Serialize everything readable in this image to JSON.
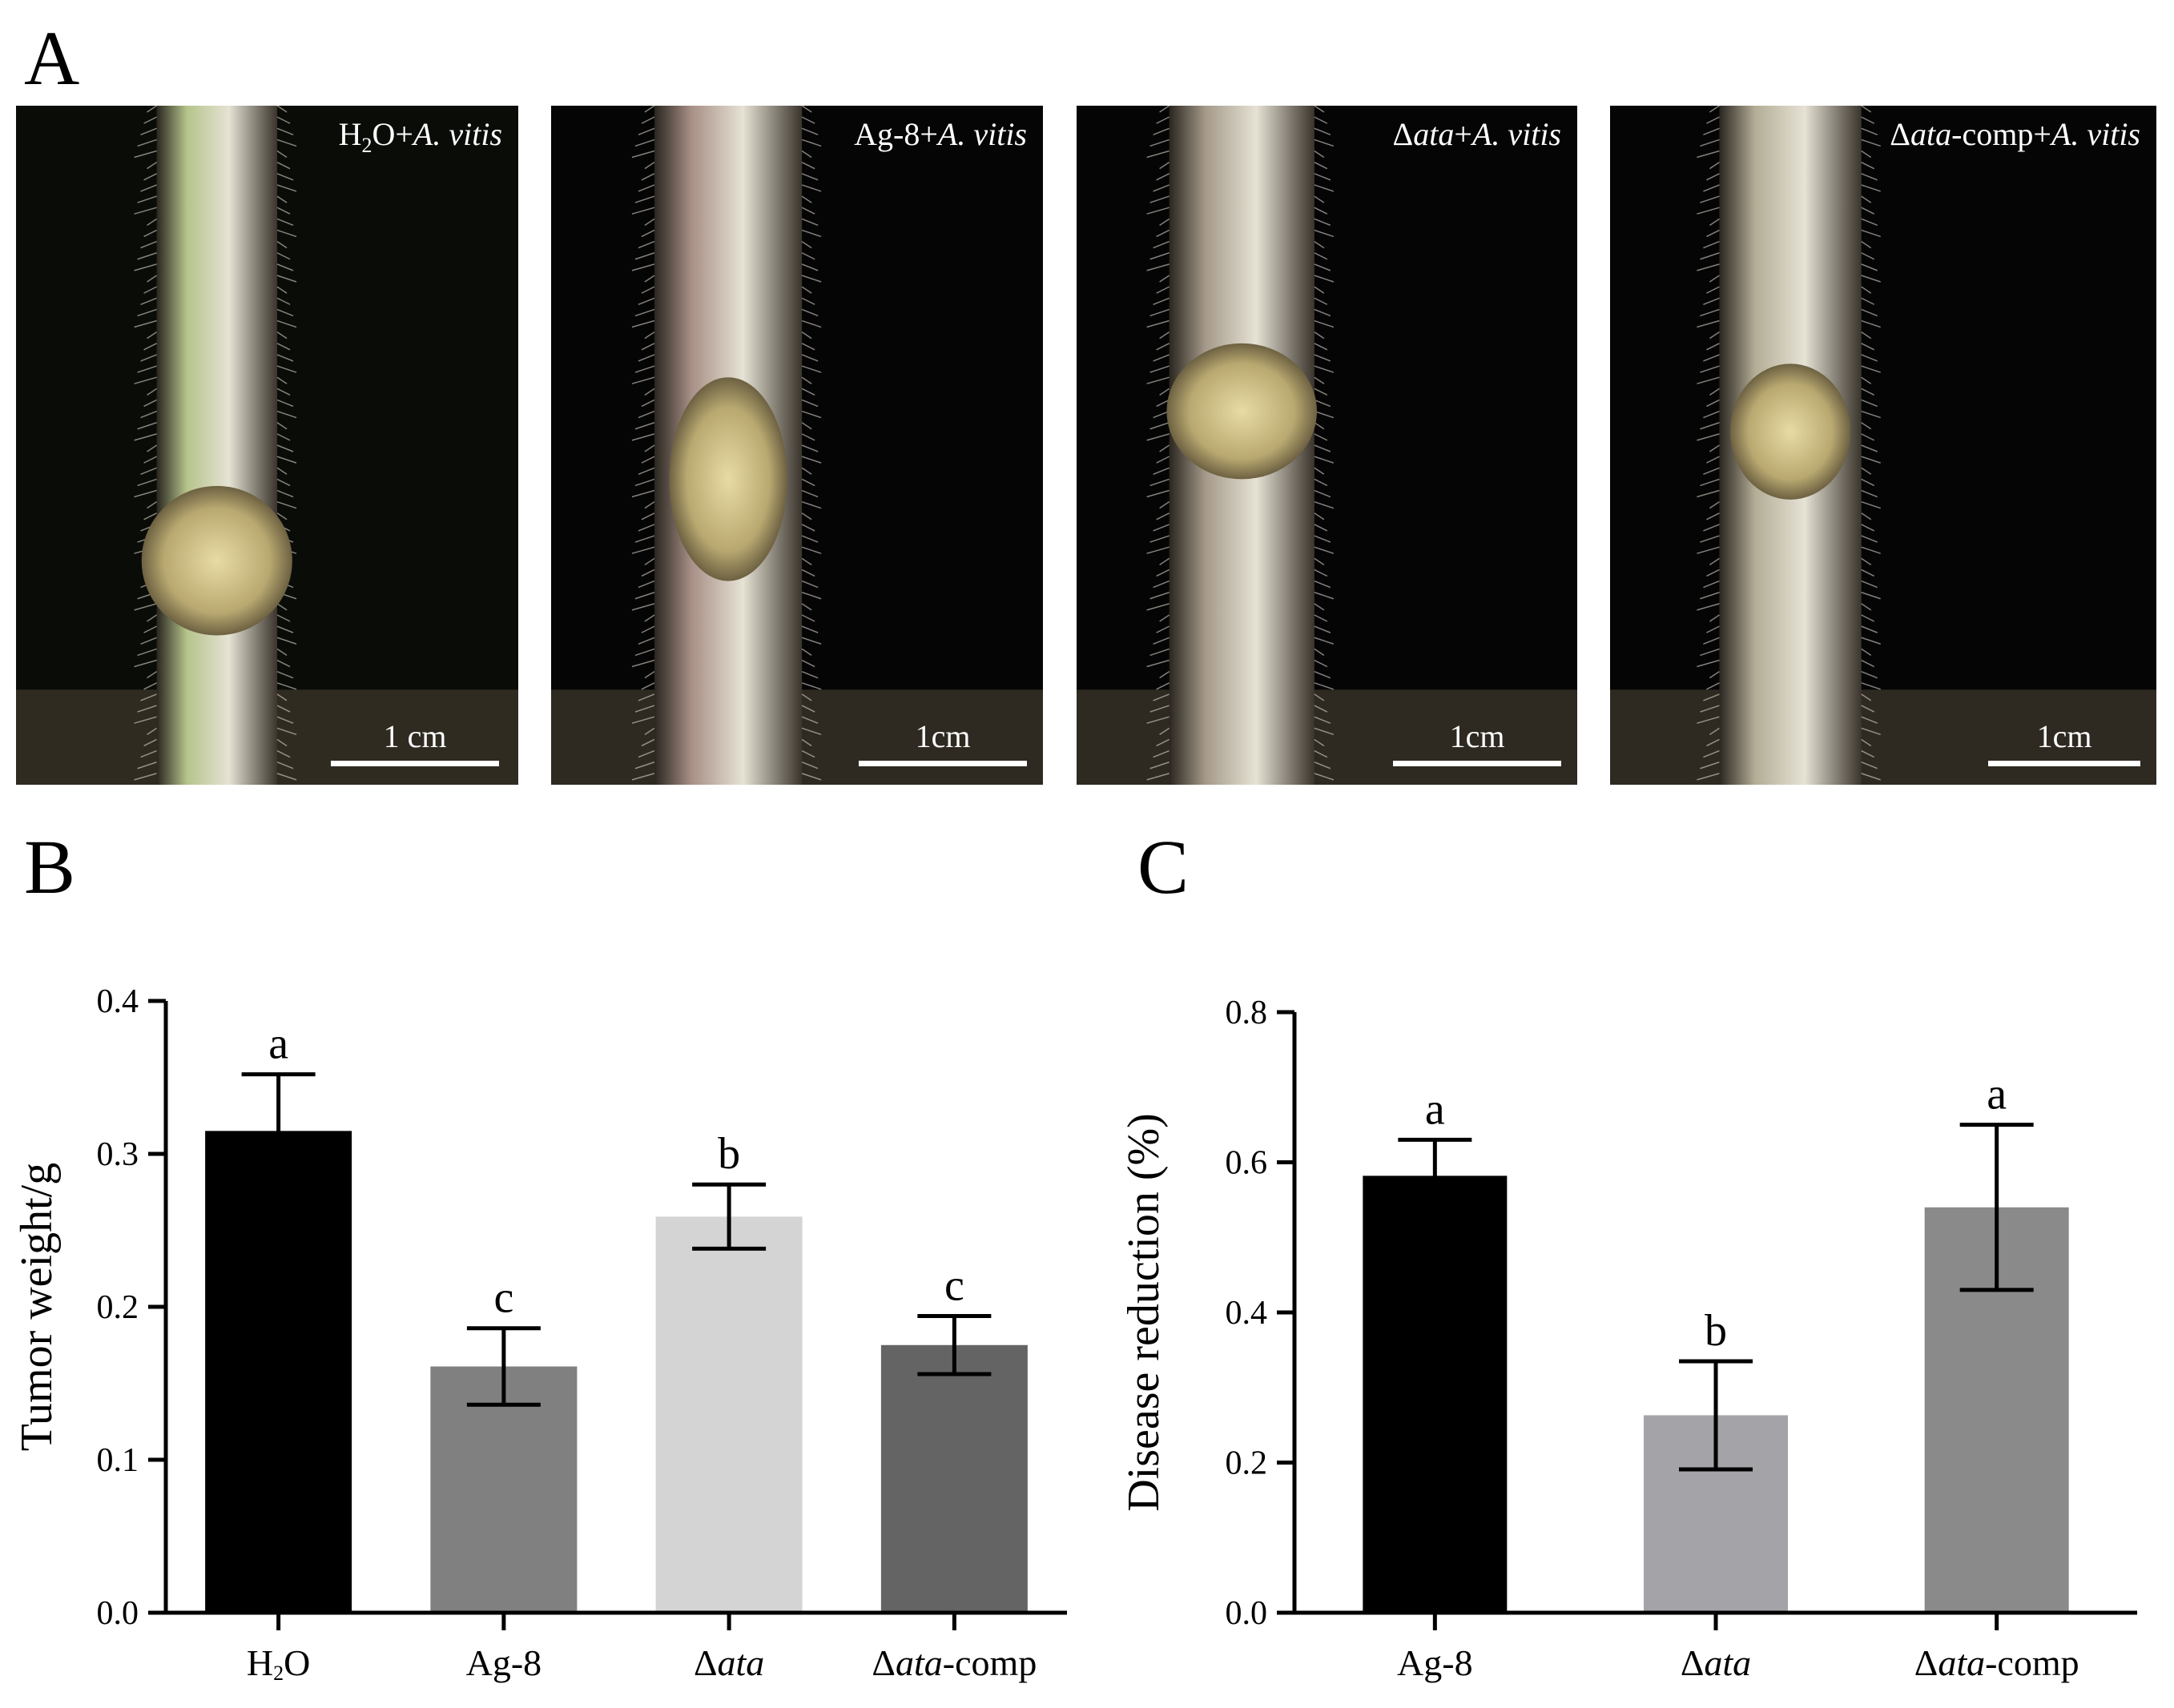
{
  "panels": {
    "A": {
      "letter": "A"
    },
    "B": {
      "letter": "B"
    },
    "C": {
      "letter": "C"
    }
  },
  "photos": [
    {
      "label_html": "H<sub style=\"font-size:26px\">2</sub>O+<i>A. vitis</i>",
      "scale": "1 cm",
      "stem_color": "#b5c48a",
      "background": "#0a0c08"
    },
    {
      "label_html": "Ag-8+<i>A. vitis</i>",
      "scale": "1cm",
      "stem_color": "#a88f86",
      "background": "#050505"
    },
    {
      "label_html": "Δ<i>ata</i>+<i>A. vitis</i>",
      "scale": "1cm",
      "stem_color": "#a59a8a",
      "background": "#050505"
    },
    {
      "label_html": "Δ<i>ata</i>-comp+<i>A. vitis</i>",
      "scale": "1cm",
      "stem_color": "#b3ad96",
      "background": "#050505"
    }
  ],
  "chart_data": [
    {
      "type": "bar",
      "panel": "B",
      "ylabel": "Tumor weight/g",
      "xlabel": "",
      "ylim": [
        0,
        0.4
      ],
      "yticks": [
        "0.0",
        "0.1",
        "0.2",
        "0.3",
        "0.4"
      ],
      "categories": [
        "H₂O",
        "Ag-8",
        "Δata",
        "Δata-comp"
      ],
      "category_html": [
        "H<tspan font-size=\"26\" dy=\"6\">2</tspan><tspan dy=\"-6\">O</tspan>",
        "Ag-8",
        "Δ<tspan font-style=\"italic\">ata</tspan>",
        "Δ<tspan font-style=\"italic\">ata</tspan>-comp"
      ],
      "values": [
        0.315,
        0.161,
        0.259,
        0.175
      ],
      "errors": [
        0.037,
        0.025,
        0.021,
        0.019
      ],
      "letters": [
        "a",
        "c",
        "b",
        "c"
      ],
      "colors": [
        "#000000",
        "#808080",
        "#d4d4d4",
        "#646464"
      ]
    },
    {
      "type": "bar",
      "panel": "C",
      "ylabel": "Disease reduction (%)",
      "xlabel": "",
      "ylim": [
        0,
        0.8
      ],
      "yticks": [
        "0.0",
        "0.2",
        "0.4",
        "0.6",
        "0.8"
      ],
      "categories": [
        "Ag-8",
        "Δata",
        "Δata-comp"
      ],
      "category_html": [
        "Ag-8",
        "Δ<tspan font-style=\"italic\">ata</tspan>",
        "Δ<tspan font-style=\"italic\">ata</tspan>-comp"
      ],
      "values": [
        0.582,
        0.263,
        0.54
      ],
      "errors": [
        0.048,
        0.072,
        0.11
      ],
      "letters": [
        "a",
        "b",
        "a"
      ],
      "colors": [
        "#000000",
        "#a3a3a8",
        "#8a8a8a"
      ]
    }
  ]
}
